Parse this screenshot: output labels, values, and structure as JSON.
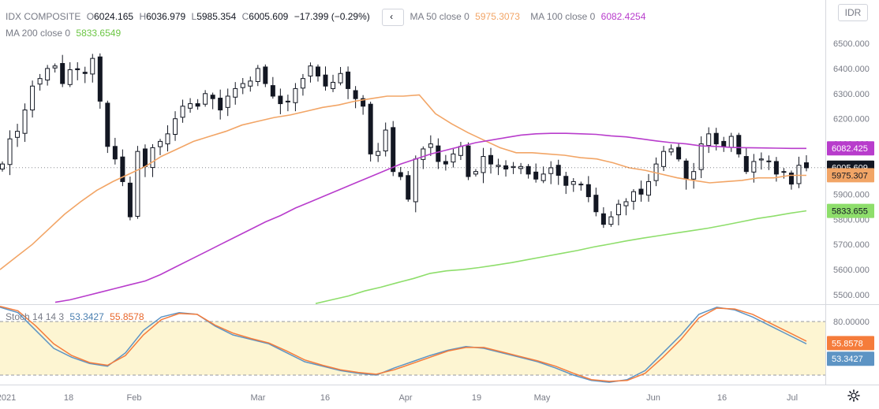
{
  "header": {
    "symbol": "IDX COMPOSITE",
    "ohlc": [
      {
        "label": "O",
        "value": "6024.165"
      },
      {
        "label": "H",
        "value": "6036.979"
      },
      {
        "label": "L",
        "value": "5985.354"
      },
      {
        "label": "C",
        "value": "6005.609"
      }
    ],
    "change": "−17.399 (−0.29%)",
    "collapse_icon": "chevron-left-icon",
    "currency": "IDR",
    "settings_icon": "gear-icon"
  },
  "indicators": {
    "ma50": {
      "label": "MA 50 close 0",
      "value": "5975.3073",
      "badge": "5975.307",
      "color": "#f2a566"
    },
    "ma100": {
      "label": "MA 100 close 0",
      "value": "6082.4254",
      "badge": "6082.425",
      "color": "#b83ccc"
    },
    "ma200": {
      "label": "MA 200 close 0",
      "value": "5833.6549",
      "badge": "5833.655",
      "color": "#8ede6b"
    },
    "last_price_badge": "6005.609"
  },
  "stoch": {
    "label": "Stoch 14 14 3",
    "k_value": "53.3427",
    "d_value": "55.8578",
    "k_color": "#5d94c4",
    "d_color": "#f57c3b",
    "band_upper": 80,
    "band_lower": 20
  },
  "x_axis": {
    "labels": [
      "2021",
      "18",
      "Feb",
      "Mar",
      "16",
      "Apr",
      "19",
      "May",
      "Jun",
      "16",
      "Jul"
    ]
  },
  "chart_data": [
    {
      "type": "candlestick",
      "title": "IDX COMPOSITE",
      "y_ticks": [
        5500,
        5600,
        5700,
        5800,
        5900,
        6000,
        6100,
        6200,
        6300,
        6400,
        6500
      ],
      "ylim": [
        5465,
        6560
      ],
      "grid": false,
      "closes": [
        6020,
        6120,
        6150,
        6235,
        6330,
        6360,
        6400,
        6410,
        6340,
        6395,
        6395,
        6380,
        6440,
        6270,
        6090,
        6040,
        5950,
        5810,
        6070,
        6010,
        6085,
        6110,
        6140,
        6200,
        6250,
        6260,
        6250,
        6300,
        6280,
        6235,
        6290,
        6320,
        6340,
        6350,
        6400,
        6340,
        6290,
        6260,
        6270,
        6320,
        6360,
        6410,
        6370,
        6330,
        6345,
        6380,
        6320,
        6280,
        6250,
        6060,
        6070,
        6155,
        5990,
        5970,
        5880,
        6040,
        6080,
        6100,
        6030,
        6020,
        6060,
        6090,
        5970,
        5990,
        6050,
        6020,
        6015,
        6000,
        6010,
        6010,
        5980,
        5960,
        5980,
        6005,
        5975,
        5935,
        5950,
        5940,
        5890,
        5830,
        5780,
        5810,
        5860,
        5870,
        5910,
        5900,
        5950,
        6020,
        6070,
        6080,
        6040,
        5960,
        5990,
        6100,
        6140,
        6100,
        6090,
        6130,
        6060,
        5990,
        6030,
        6040,
        6030,
        5980,
        5990,
        5940,
        6015,
        6005
      ],
      "ma50": [
        5600,
        5650,
        5700,
        5760,
        5820,
        5870,
        5915,
        5950,
        5980,
        6010,
        6050,
        6080,
        6110,
        6130,
        6150,
        6175,
        6190,
        6205,
        6215,
        6230,
        6245,
        6255,
        6270,
        6280,
        6290,
        6290,
        6295,
        6220,
        6180,
        6145,
        6115,
        6085,
        6065,
        6065,
        6060,
        6055,
        6045,
        6040,
        6025,
        6005,
        5995,
        5980,
        5965,
        5955,
        5945,
        5950,
        5955,
        5965,
        5965,
        5975,
        5975
      ],
      "ma100": [
        5470,
        5480,
        5495,
        5510,
        5525,
        5540,
        5555,
        5580,
        5610,
        5640,
        5670,
        5700,
        5730,
        5760,
        5790,
        5815,
        5845,
        5870,
        5895,
        5920,
        5945,
        5970,
        5995,
        6020,
        6040,
        6060,
        6075,
        6090,
        6105,
        6115,
        6125,
        6135,
        6140,
        6142,
        6142,
        6140,
        6138,
        6132,
        6128,
        6120,
        6112,
        6105,
        6100,
        6092,
        6090,
        6086,
        6085,
        6084,
        6083,
        6082,
        6082
      ],
      "ma200": [
        5465,
        5480,
        5495,
        5515,
        5530,
        5548,
        5565,
        5585,
        5595,
        5600,
        5608,
        5618,
        5628,
        5640,
        5652,
        5664,
        5676,
        5690,
        5702,
        5714,
        5725,
        5735,
        5745,
        5755,
        5765,
        5777,
        5790,
        5803,
        5813,
        5824,
        5834
      ]
    },
    {
      "type": "line",
      "title": "Stoch 14 14 3",
      "series": [
        {
          "name": "K",
          "values": [
            96,
            90,
            70,
            50,
            40,
            33,
            30,
            45,
            70,
            85,
            90,
            88,
            75,
            65,
            60,
            55,
            45,
            35,
            30,
            25,
            22,
            20,
            28,
            35,
            42,
            48,
            52,
            50,
            45,
            40,
            35,
            28,
            20,
            14,
            12,
            15,
            25,
            45,
            65,
            88,
            96,
            93,
            85,
            75,
            65,
            55
          ]
        },
        {
          "name": "D",
          "values": [
            97,
            92,
            75,
            55,
            42,
            34,
            31,
            42,
            65,
            82,
            89,
            88,
            76,
            67,
            61,
            56,
            47,
            37,
            31,
            26,
            23,
            21,
            26,
            33,
            40,
            47,
            51,
            51,
            46,
            41,
            36,
            30,
            22,
            15,
            13,
            14,
            22,
            40,
            60,
            84,
            95,
            94,
            88,
            78,
            68,
            58
          ]
        }
      ],
      "y_ticks": [
        40,
        80
      ],
      "ylim": [
        0,
        100
      ]
    }
  ]
}
